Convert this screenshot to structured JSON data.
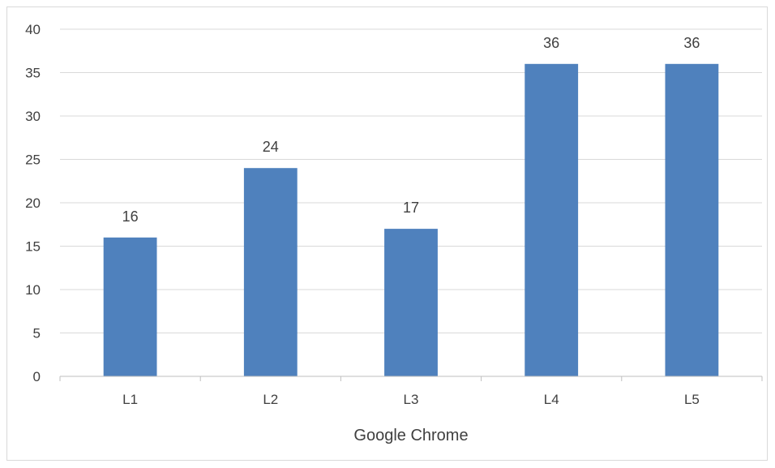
{
  "chart_data": {
    "type": "bar",
    "categories": [
      "L1",
      "L2",
      "L3",
      "L4",
      "L5"
    ],
    "values": [
      16,
      24,
      17,
      36,
      36
    ],
    "xlabel": "Google Chrome",
    "ylabel": "",
    "ylim": [
      0,
      40
    ],
    "yticks": [
      "0",
      "5",
      "10",
      "15",
      "20",
      "25",
      "30",
      "35",
      "40"
    ],
    "data_labels": [
      "16",
      "24",
      "17",
      "36",
      "36"
    ],
    "grid": true,
    "legend": "none",
    "colors": {
      "bar": "#4f81bd",
      "grid": "#d9d9d9",
      "axis": "#bfbfbf",
      "text": "#404040"
    }
  }
}
